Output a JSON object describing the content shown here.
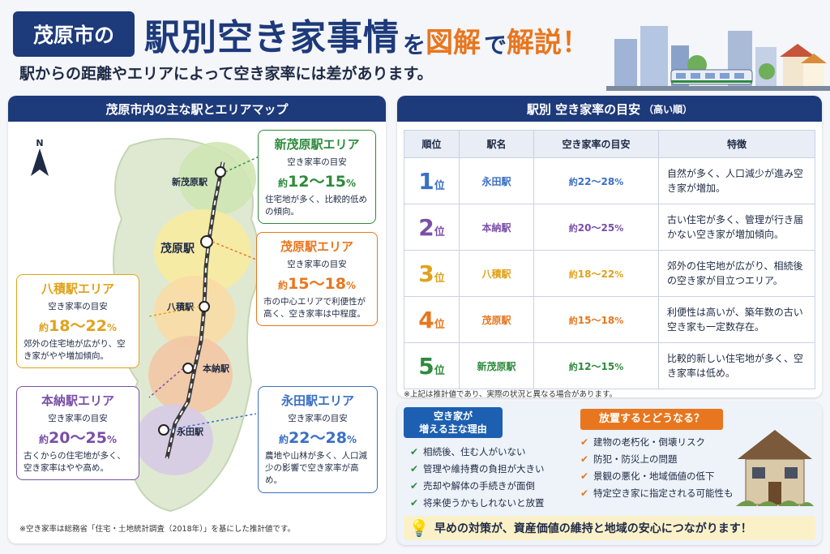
{
  "header": {
    "city_badge": "茂原市の",
    "title_big": "駅別空き家事情",
    "title_wo": "を",
    "title_zukai": "図解",
    "title_de": "で",
    "title_kaisetsu": "解説！",
    "subtitle": "駅からの距離やエリアによって空き家率には差があります。"
  },
  "map_panel": {
    "title": "茂原市内の主な駅とエリアマップ",
    "north": "N",
    "stations": [
      "新茂原駅",
      "茂原駅",
      "八積駅",
      "本納駅",
      "永田駅"
    ],
    "callouts": [
      {
        "title": "新茂原駅エリア",
        "sub": "空き家率の目安",
        "approx": "約",
        "rate": "12〜15",
        "pct": "%",
        "desc": "住宅地が多く、比較的低めの傾向。"
      },
      {
        "title": "茂原駅エリア",
        "sub": "空き家率の目安",
        "approx": "約",
        "rate": "15〜18",
        "pct": "%",
        "desc": "市の中心エリアで利便性が高く、空き家率は中程度。"
      },
      {
        "title": "八積駅エリア",
        "sub": "空き家率の目安",
        "approx": "約",
        "rate": "18〜22",
        "pct": "%",
        "desc": "郊外の住宅地が広がり、空き家がやや増加傾向。"
      },
      {
        "title": "本納駅エリア",
        "sub": "空き家率の目安",
        "approx": "約",
        "rate": "20〜25",
        "pct": "%",
        "desc": "古くからの住宅地が多く、空き家率はやや高め。"
      },
      {
        "title": "永田駅エリア",
        "sub": "空き家率の目安",
        "approx": "約",
        "rate": "22〜28",
        "pct": "%",
        "desc": "農地や山林が多く、人口減少の影響で空き家率が高め。"
      }
    ],
    "note": "※空き家率は総務省「住宅・土地統計調査（2018年）」を基にした推計値です。"
  },
  "rank_panel": {
    "title": "駅別 空き家率の目安",
    "title_small": "（高い順）",
    "headers": [
      "順位",
      "駅名",
      "空き家率の目安",
      "特徴"
    ],
    "rank_unit": "位",
    "approx": "約",
    "pct": "%",
    "rows": [
      {
        "rank": "1",
        "name": "永田駅",
        "rate": "22〜28",
        "feat": "自然が多く、人口減少が進み空き家が増加。",
        "color": "#3a6fc4"
      },
      {
        "rank": "2",
        "name": "本納駅",
        "rate": "20〜25",
        "feat": "古い住宅が多く、管理が行き届かない空き家が増加傾向。",
        "color": "#7a4fa8"
      },
      {
        "rank": "3",
        "name": "八積駅",
        "rate": "18〜22",
        "feat": "郊外の住宅地が広がり、相続後の空き家が目立つエリア。",
        "color": "#e0a21a"
      },
      {
        "rank": "4",
        "name": "茂原駅",
        "rate": "15〜18",
        "feat": "利便性は高いが、築年数の古い空き家も一定数存在。",
        "color": "#e8761e"
      },
      {
        "rank": "5",
        "name": "新茂原駅",
        "rate": "12〜15",
        "feat": "比較的新しい住宅地が多く、空き家率は低め。",
        "color": "#2e8b3c"
      }
    ],
    "note": "※上記は推計値であり、実際の状況と異なる場合があります。"
  },
  "reasons": {
    "title_line1": "空き家が",
    "title_line2": "増える主な理由",
    "items": [
      "相続後、住む人がいない",
      "管理や維持費の負担が大きい",
      "売却や解体の手続きが面倒",
      "将来使うかもしれないと放置"
    ]
  },
  "risks": {
    "title": "放置するとどうなる？",
    "items": [
      "建物の老朽化・倒壊リスク",
      "防犯・防災上の問題",
      "景観の悪化・地域価値の低下",
      "特定空き家に指定される可能性も"
    ]
  },
  "bottom": {
    "icon": "lightbulb-icon",
    "text": "早めの対策が、資産価値の維持と地域の安心につながります！"
  },
  "colors": {
    "navy": "#1d3a7a",
    "orange": "#e8761e",
    "green": "#2e8b3c",
    "purple": "#7a4fa8",
    "blue": "#3a6fc4",
    "gold": "#e0a21a"
  }
}
